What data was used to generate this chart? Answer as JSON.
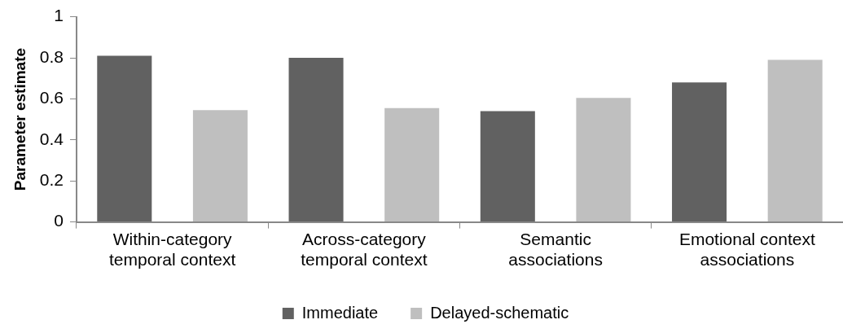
{
  "chart_data": {
    "type": "bar",
    "ylabel": "Parameter estimate",
    "categories": [
      "Within-category\ntemporal context",
      "Across-category\ntemporal context",
      "Semantic\nassociations",
      "Emotional context\nassociations"
    ],
    "series": [
      {
        "name": "Immediate",
        "color": "#616161",
        "values": [
          0.81,
          0.8,
          0.54,
          0.68
        ]
      },
      {
        "name": "Delayed-schematic",
        "color": "#bfbfbf",
        "values": [
          0.545,
          0.555,
          0.605,
          0.79
        ]
      }
    ],
    "ylim": [
      0,
      1
    ],
    "yticks": [
      0,
      0.2,
      0.4,
      0.6,
      0.8,
      1
    ],
    "grid": false,
    "legend": "bottom"
  }
}
